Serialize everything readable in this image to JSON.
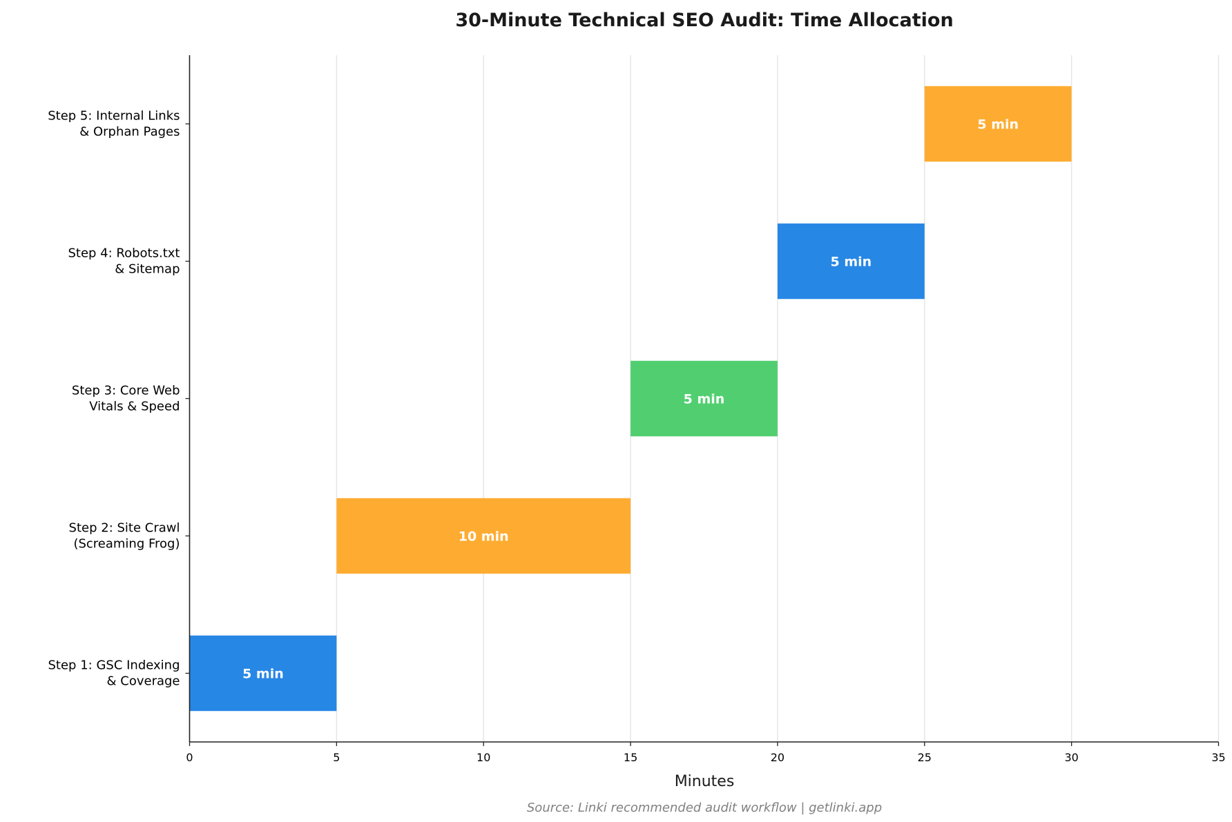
{
  "chart_data": {
    "type": "bar",
    "orientation": "horizontal",
    "subtype": "gantt",
    "title": "30-Minute Technical SEO Audit: Time Allocation",
    "xlabel": "Minutes",
    "ylabel": "",
    "xlim": [
      0,
      35
    ],
    "xticks": [
      "0",
      "5",
      "10",
      "15",
      "20",
      "25",
      "30",
      "35"
    ],
    "grid": "vertical",
    "categories": [
      "Step 1: GSC Indexing\n& Coverage",
      "Step 2: Site Crawl\n(Screaming Frog)",
      "Step 3: Core Web\nVitals & Speed",
      "Step 4: Robots.txt\n& Sitemap",
      "Step 5: Internal Links\n& Orphan Pages"
    ],
    "starts": [
      0,
      5,
      15,
      20,
      25
    ],
    "durations": [
      5,
      10,
      5,
      5,
      5
    ],
    "bar_labels": [
      "5 min",
      "10 min",
      "5 min",
      "5 min",
      "5 min"
    ],
    "colors": [
      "#2787E5",
      "#FEAC31",
      "#51CF70",
      "#2787E5",
      "#FEAC31"
    ],
    "source": "Source: Linki recommended audit workflow | getlinki.app"
  }
}
